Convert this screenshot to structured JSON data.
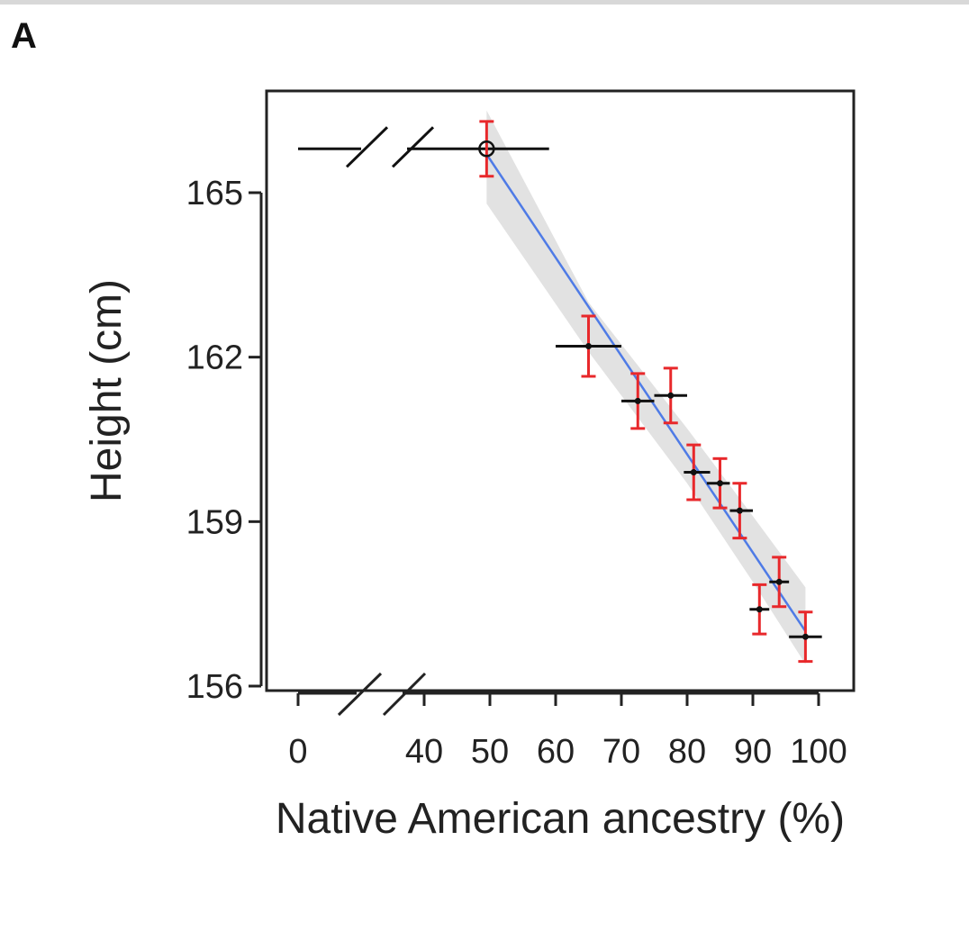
{
  "panel_label": "A",
  "chart_data": {
    "type": "scatter",
    "title": "",
    "xlabel": "Native American ancestry (%)",
    "ylabel": "Height (cm)",
    "xlim": [
      0,
      100
    ],
    "ylim": [
      156,
      166
    ],
    "x_axis_break": [
      0,
      40
    ],
    "x_ticks": [
      0,
      40,
      50,
      60,
      70,
      80,
      90,
      100
    ],
    "y_ticks": [
      156,
      159,
      162,
      165
    ],
    "grid": false,
    "legend": "none",
    "points": [
      {
        "x": 49.5,
        "y": 165.8,
        "x_err_low": 0,
        "x_err_high": 59,
        "y_err": 0.5,
        "marker": "open-circle"
      },
      {
        "x": 65,
        "y": 162.2,
        "x_err_low": 60,
        "x_err_high": 70,
        "y_err": 0.55,
        "marker": "dot"
      },
      {
        "x": 72.5,
        "y": 161.2,
        "x_err_low": 70,
        "x_err_high": 75,
        "y_err": 0.5,
        "marker": "dot"
      },
      {
        "x": 77.5,
        "y": 161.3,
        "x_err_low": 75,
        "x_err_high": 80,
        "y_err": 0.5,
        "marker": "dot"
      },
      {
        "x": 81,
        "y": 159.9,
        "x_err_low": 79.5,
        "x_err_high": 83.5,
        "y_err": 0.5,
        "marker": "dot"
      },
      {
        "x": 85,
        "y": 159.7,
        "x_err_low": 83,
        "x_err_high": 86.5,
        "y_err": 0.45,
        "marker": "dot"
      },
      {
        "x": 88,
        "y": 159.2,
        "x_err_low": 86.5,
        "x_err_high": 90,
        "y_err": 0.5,
        "marker": "dot"
      },
      {
        "x": 91,
        "y": 157.4,
        "x_err_low": 89.5,
        "x_err_high": 92.5,
        "y_err": 0.45,
        "marker": "dot"
      },
      {
        "x": 94,
        "y": 157.9,
        "x_err_low": 92.5,
        "x_err_high": 95.5,
        "y_err": 0.45,
        "marker": "dot"
      },
      {
        "x": 98,
        "y": 156.9,
        "x_err_low": 95.5,
        "x_err_high": 100.5,
        "y_err": 0.45,
        "marker": "dot"
      }
    ],
    "fit_line": {
      "x": [
        49.5,
        98
      ],
      "y": [
        165.7,
        157.0
      ],
      "color": "#4f7be6"
    },
    "confidence_band": {
      "upper": [
        [
          49.5,
          166.5
        ],
        [
          65,
          163.0
        ],
        [
          80,
          160.7
        ],
        [
          90,
          159.1
        ],
        [
          98,
          157.8
        ]
      ],
      "lower": [
        [
          49.5,
          164.8
        ],
        [
          65,
          162.1
        ],
        [
          80,
          159.7
        ],
        [
          90,
          157.9
        ],
        [
          98,
          156.4
        ]
      ],
      "color": "#e2e2e2"
    },
    "colors": {
      "y_error": "#e8282b",
      "x_error": "#111111",
      "marker": "#111111"
    }
  }
}
